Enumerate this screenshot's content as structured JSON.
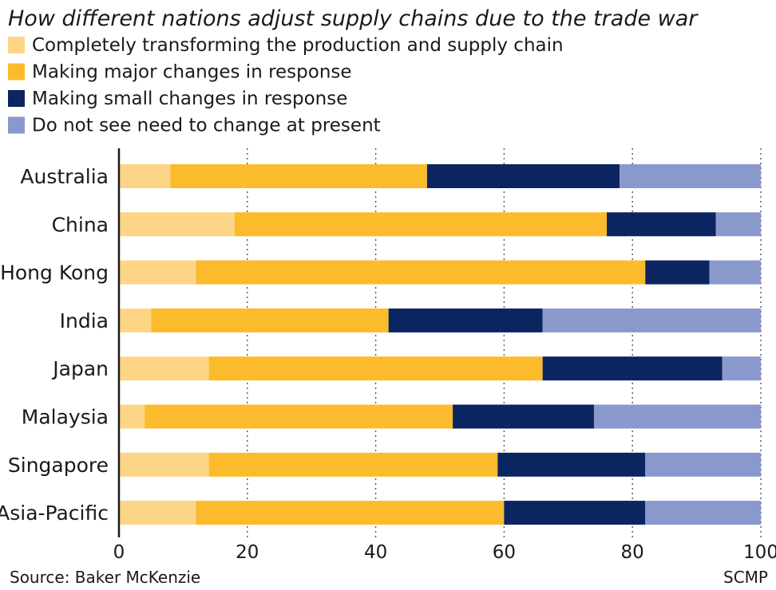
{
  "chart_data": {
    "type": "bar",
    "orientation": "horizontal",
    "stacked": true,
    "title": "How different nations adjust supply chains due to the trade war",
    "categories": [
      "Australia",
      "China",
      "Hong Kong",
      "India",
      "Japan",
      "Malaysia",
      "Singapore",
      "Asia-Pacific"
    ],
    "series": [
      {
        "name": "Completely transforming the production and supply chain",
        "color": "#fdd587",
        "values": [
          8,
          18,
          12,
          5,
          14,
          4,
          14,
          12
        ]
      },
      {
        "name": "Making major changes in response",
        "color": "#fcba2d",
        "values": [
          40,
          58,
          70,
          37,
          52,
          48,
          45,
          48
        ]
      },
      {
        "name": "Making small changes in response",
        "color": "#0b2560",
        "values": [
          30,
          17,
          10,
          24,
          28,
          22,
          23,
          22
        ]
      },
      {
        "name": "Do not see need to change at present",
        "color": "#8a99cc",
        "values": [
          22,
          7,
          8,
          34,
          6,
          26,
          18,
          18
        ]
      }
    ],
    "xlim": [
      0,
      100
    ],
    "xticks": [
      "0",
      "20",
      "40",
      "60",
      "80",
      "100"
    ],
    "grid": "vertical-dotted",
    "legend_position": "top-left",
    "source": "Source: Baker McKenzie",
    "credit": "SCMP"
  }
}
